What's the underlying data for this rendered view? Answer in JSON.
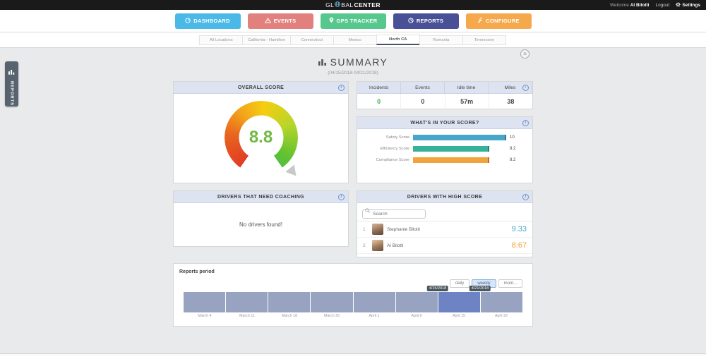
{
  "topbar": {
    "logo_prefix": "GL",
    "logo_suffix": "BAL",
    "logo_bold": "CENTER",
    "welcome_label": "Welcome",
    "user_name": "Al Bilotti",
    "logout_label": "Logout",
    "settings_label": "Settings"
  },
  "nav": {
    "items": [
      {
        "label": "DASHBOARD",
        "color": "#4bb9e8",
        "active": false
      },
      {
        "label": "EVENTS",
        "color": "#e2807e",
        "active": false
      },
      {
        "label": "GPS TRACKER",
        "color": "#57c88d",
        "active": false
      },
      {
        "label": "REPORTS",
        "color": "#5058a3",
        "active": true
      },
      {
        "label": "CONFIGURE",
        "color": "#f6a94c",
        "active": false
      }
    ]
  },
  "location_tabs": {
    "items": [
      "All Locations",
      "California - Hamilton",
      "Connecticut",
      "Mexico",
      "North CA",
      "Romania",
      "Tennessee"
    ],
    "active": "North CA"
  },
  "side_tab": {
    "label": "REPORTS"
  },
  "page": {
    "title": "SUMMARY",
    "subtitle": "(04/15/2018-04/21/2018)",
    "corner_button_glyph": "≡"
  },
  "overall_score": {
    "title": "OVERALL SCORE",
    "chart_data": {
      "type": "gauge",
      "value": "8.8",
      "min": 0,
      "max": 10,
      "value_color": "#71b843"
    }
  },
  "stats": {
    "columns": [
      "Incidents",
      "Events",
      "Idle time",
      "Miles"
    ],
    "values": [
      {
        "text": "0",
        "color": "#3fae49"
      },
      {
        "text": "0",
        "color": "#444444"
      },
      {
        "text": "57m",
        "color": "#444444"
      },
      {
        "text": "38",
        "color": "#444444"
      }
    ]
  },
  "score_breakdown": {
    "title": "WHAT'S IN YOUR SCORE?",
    "chart_data": {
      "type": "bar",
      "orientation": "horizontal",
      "categories": [
        "Safety Score",
        "Efficiency Score",
        "Compliance Score"
      ],
      "values": [
        10,
        8.2,
        8.2
      ],
      "value_labels": [
        "10",
        "8.2",
        "8.2"
      ],
      "colors": [
        "#46a7c8",
        "#36b29a",
        "#f1a33c"
      ],
      "xlim": [
        0,
        10
      ]
    }
  },
  "coaching": {
    "title": "DRIVERS THAT NEED COACHING",
    "empty_message": "No drivers found!"
  },
  "high_score": {
    "title": "DRIVERS WITH HIGH SCORE",
    "search_placeholder": "Search",
    "drivers": [
      {
        "rank": "1",
        "name": "Stephanie Bilotti",
        "score": "9.33",
        "score_color": "#46a7c8"
      },
      {
        "rank": "2",
        "name": "Al Bilotti",
        "score": "8.67",
        "score_color": "#f1a33c"
      }
    ]
  },
  "reports_period": {
    "title": "Reports period",
    "range_buttons": [
      {
        "label": "daily",
        "active": false
      },
      {
        "label": "weekly",
        "active": true
      },
      {
        "label": "mont...",
        "active": false
      }
    ],
    "chart_data": {
      "type": "bar",
      "x": [
        "March 4",
        "March 11",
        "March 18",
        "March 25",
        "April 1",
        "April 8",
        "April 15",
        "April 22"
      ],
      "values": [
        1,
        1,
        1,
        1,
        1,
        1,
        1,
        1
      ],
      "bar_color": "#98a3c2",
      "selected_index": 6,
      "selected_color": "#6d83c4",
      "selection_tooltips": [
        "4/15/2018",
        "4/21/2018"
      ]
    }
  }
}
